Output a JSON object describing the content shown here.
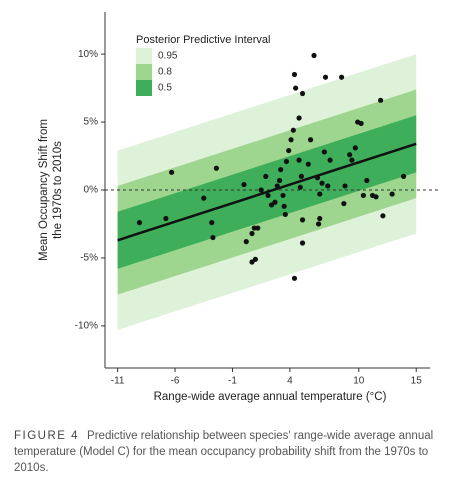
{
  "chart_data": {
    "type": "interval-scatter",
    "xlabel": "Range-wide average annual temperature (°C)",
    "ylabel": [
      "Mean Occupancy Shift from",
      "the 1970s to 2010s"
    ],
    "legend_title": "Posterior Predictive Interval",
    "legend": "top-left",
    "xlim": [
      -12.1,
      16.2
    ],
    "ylim": [
      -13.1,
      13.1
    ],
    "xticks": [
      -11,
      -6,
      -1,
      4,
      10,
      15
    ],
    "yticks": [
      {
        "value": -10,
        "label": "-10%"
      },
      {
        "value": -5,
        "label": "-5%"
      },
      {
        "value": 0,
        "label": "0%"
      },
      {
        "value": 5,
        "label": "5%"
      },
      {
        "value": 10,
        "label": "10%"
      }
    ],
    "reference_line": 0,
    "intervals": [
      {
        "name": "0.95",
        "color": "#def2d9",
        "x": [
          -11,
          15
        ],
        "lower": [
          -10.3,
          -3.2
        ],
        "upper": [
          2.9,
          10.0
        ]
      },
      {
        "name": "0.8",
        "color": "#9fd68f",
        "x": [
          -11,
          15
        ],
        "lower": [
          -7.7,
          -0.6
        ],
        "upper": [
          0.3,
          7.4
        ]
      },
      {
        "name": "0.5",
        "color": "#3fae5a",
        "x": [
          -11,
          15
        ],
        "lower": [
          -5.8,
          1.3
        ],
        "upper": [
          -1.6,
          5.5
        ]
      }
    ],
    "fit": {
      "x": [
        -11,
        15
      ],
      "y": [
        -3.7,
        3.4
      ],
      "color": "#111111"
    },
    "points": {
      "color": "#111111",
      "x": [
        -9.1,
        -6.8,
        -6.3,
        -3.5,
        -2.8,
        -2.7,
        -2.4,
        0.0,
        0.2,
        0.7,
        0.9,
        1.2,
        1.0,
        0.7,
        1.5,
        1.9,
        2.1,
        2.4,
        2.7,
        2.9,
        3.1,
        3.2,
        3.4,
        3.5,
        3.6,
        3.7,
        3.9,
        4.1,
        4.3,
        4.4,
        4.5,
        4.8,
        4.8,
        4.9,
        5.0,
        5.1,
        5.1,
        5.1,
        4.4,
        5.6,
        5.8,
        6.1,
        6.4,
        6.6,
        6.5,
        6.6,
        6.8,
        7.0,
        7.1,
        7.3,
        7.5,
        8.5,
        8.7,
        8.8,
        9.2,
        9.4,
        9.7,
        9.9,
        10.2,
        10.4,
        10.7,
        11.2,
        11.5,
        11.9,
        12.1,
        12.9,
        13.9
      ],
      "y": [
        -2.4,
        -2.1,
        1.3,
        -0.6,
        -2.4,
        -3.5,
        1.6,
        0.4,
        -3.8,
        -3.2,
        -2.8,
        -2.8,
        -5.1,
        -5.3,
        0.0,
        1.0,
        -0.4,
        -1.1,
        -0.9,
        0.3,
        0.7,
        1.5,
        -0.4,
        -1.2,
        -1.8,
        2.1,
        2.9,
        3.7,
        4.4,
        8.5,
        7.5,
        5.3,
        2.2,
        0.2,
        1.0,
        7.1,
        -2.2,
        -3.9,
        -6.5,
        1.9,
        3.7,
        9.9,
        0.9,
        -2.1,
        -2.5,
        -0.3,
        0.5,
        2.8,
        8.3,
        0.3,
        2.2,
        8.3,
        -1.0,
        0.3,
        2.6,
        2.2,
        3.1,
        5.0,
        4.9,
        -0.4,
        0.7,
        -0.4,
        -0.5,
        6.6,
        -1.9,
        -0.3,
        1.0
      ]
    }
  },
  "caption": {
    "label": "FIGURE 4",
    "text": "Predictive relationship between species' range-wide average annual temperature (Model C) for the mean occupancy probability shift from the 1970s to 2010s."
  }
}
